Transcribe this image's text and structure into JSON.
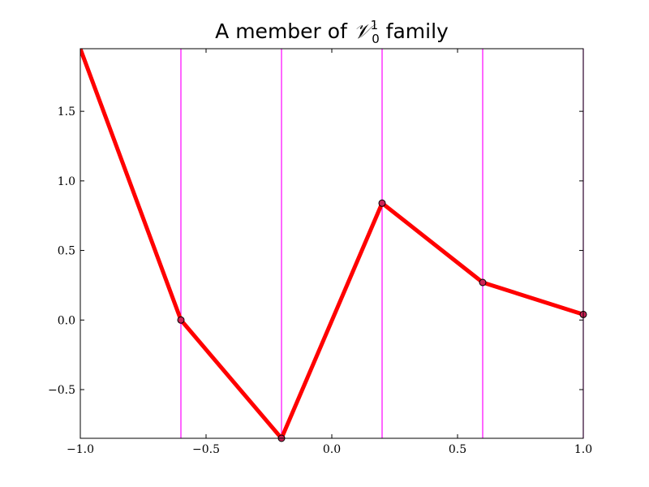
{
  "chart_data": {
    "type": "line",
    "title": {
      "prefix": "A member of ",
      "symbol": "𝒱",
      "superscript": "1",
      "subscript": "0",
      "suffix": " family"
    },
    "xlabel": "",
    "ylabel": "",
    "xlim": [
      -1.0,
      1.0
    ],
    "ylim": [
      -0.85,
      1.95
    ],
    "x_ticks": [
      -1.0,
      -0.5,
      0.0,
      0.5,
      1.0
    ],
    "x_tick_labels": [
      "−1.0",
      "−0.5",
      "0.0",
      "0.5",
      "1.0"
    ],
    "y_ticks": [
      -0.5,
      0.0,
      0.5,
      1.0,
      1.5
    ],
    "y_tick_labels": [
      "−0.5",
      "0.0",
      "0.5",
      "1.0",
      "1.5"
    ],
    "grid": false,
    "vertical_lines": {
      "x": [
        -0.6,
        -0.2,
        0.2,
        0.6,
        1.0
      ],
      "color": "#ff00ff"
    },
    "series": [
      {
        "x": [
          -1.0,
          -0.6,
          -0.2,
          0.2,
          0.6,
          1.0
        ],
        "y": [
          1.95,
          0.0,
          -0.85,
          0.84,
          0.27,
          0.04
        ],
        "color": "#ff0000"
      }
    ],
    "markers": {
      "x": [
        -0.6,
        -0.2,
        0.2,
        0.6,
        1.0
      ],
      "y": [
        0.0,
        -0.85,
        0.84,
        0.27,
        0.04
      ],
      "color": "#cc2255",
      "edge_color": "#000000"
    }
  }
}
